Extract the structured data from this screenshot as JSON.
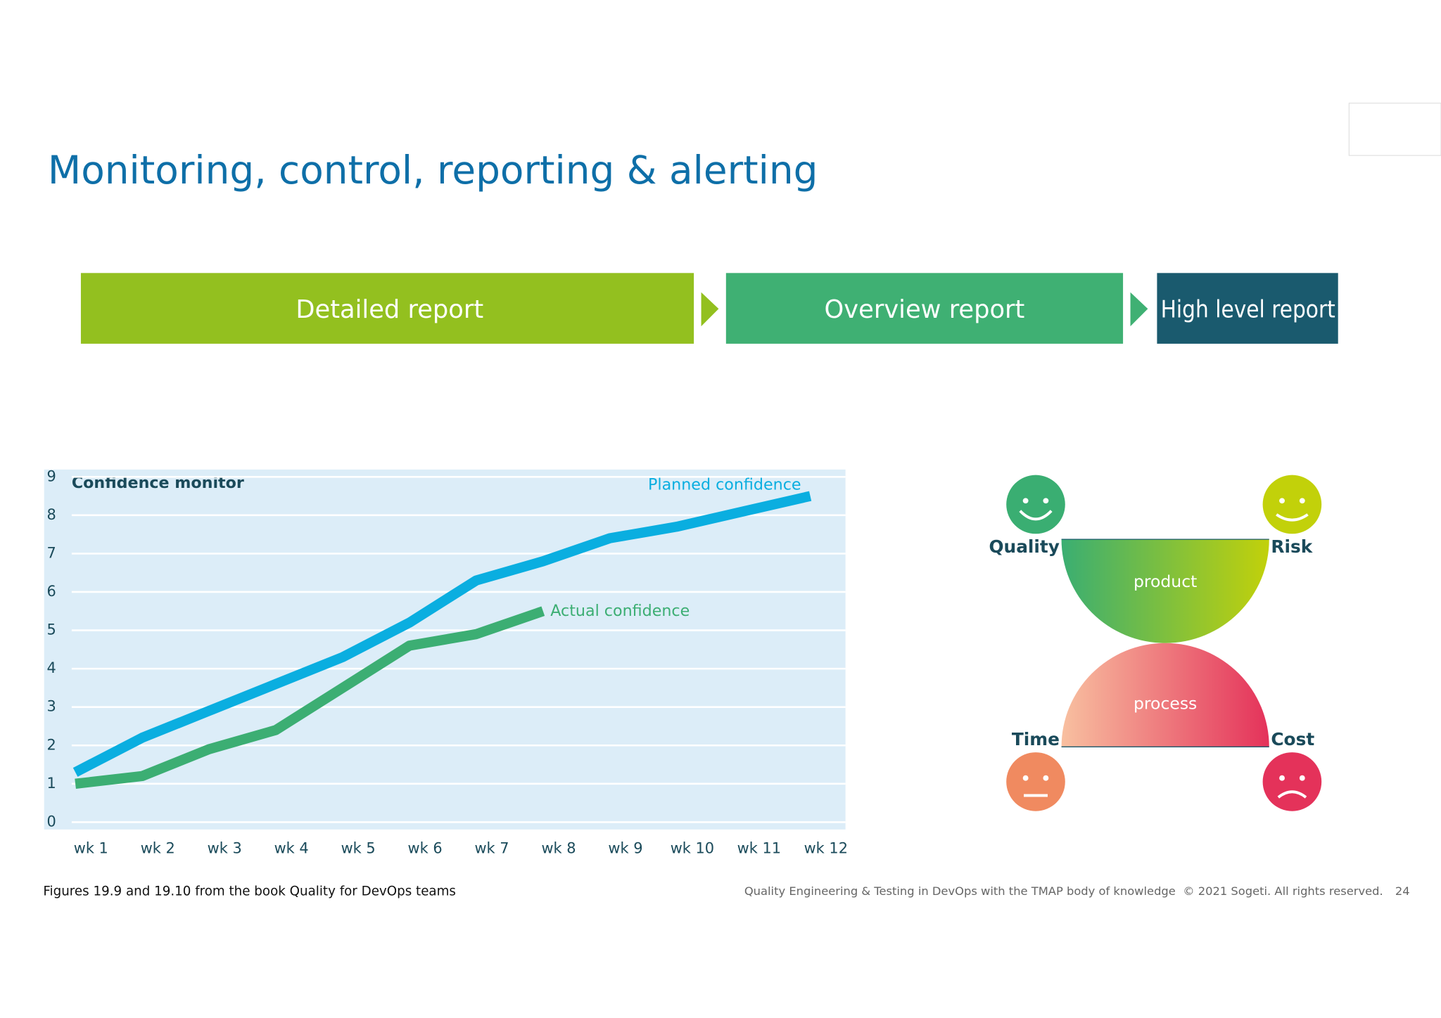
{
  "title": "Monitoring, control, reporting & alerting",
  "reports": [
    "Detailed report",
    "Overview report",
    "High level report"
  ],
  "diagram": {
    "top": "product",
    "bottom": "process",
    "quality": "Quality",
    "risk": "Risk",
    "time": "Time",
    "cost": "Cost"
  },
  "footer": {
    "source": "Figures 19.9 and 19.10 from the book Quality for DevOps teams",
    "copyright": "Quality Engineering & Testing in DevOps with the TMAP body of knowledge  © 2021 Sogeti. All rights reserved.",
    "page": 24
  },
  "chart_data": {
    "type": "line",
    "title": "Confidence monitor",
    "categories": [
      "wk 1",
      "wk 2",
      "wk 3",
      "wk 4",
      "wk 5",
      "wk 6",
      "wk 7",
      "wk 8",
      "wk 9",
      "wk 10",
      "wk 11",
      "wk 12"
    ],
    "series": [
      {
        "name": "Planned confidence",
        "color": "#0aaee0",
        "values": [
          1.3,
          2.2,
          2.9,
          3.6,
          4.3,
          5.2,
          6.3,
          6.8,
          7.4,
          7.7,
          8.1,
          8.5
        ]
      },
      {
        "name": "Actual confidence",
        "color": "#3cae73",
        "values": [
          1.0,
          1.2,
          1.9,
          2.4,
          3.5,
          4.6,
          4.9,
          5.5,
          null,
          null,
          null,
          null
        ]
      }
    ],
    "ylim": [
      0,
      9
    ],
    "yticks": [
      0,
      1,
      2,
      3,
      4,
      5,
      6,
      7,
      8,
      9
    ],
    "grid": true
  }
}
